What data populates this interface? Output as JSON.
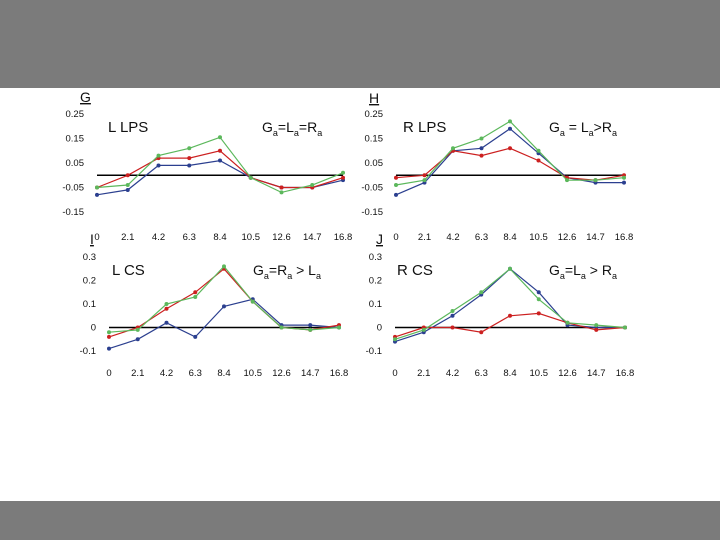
{
  "colors": {
    "frame_band": "#7b7b7b",
    "background": "#ffffff",
    "blue": "#2b3f8f",
    "red": "#cc2020",
    "green": "#5cb85c",
    "zero_line": "#000000"
  },
  "chart_data": [
    {
      "type": "line",
      "panel_letter": "G",
      "title": "L LPS",
      "annotation": [
        {
          "t": "G",
          "sub": false
        },
        {
          "t": "a",
          "sub": true
        },
        {
          "t": "=L",
          "sub": false
        },
        {
          "t": "a",
          "sub": true
        },
        {
          "t": "=R",
          "sub": false
        },
        {
          "t": "a",
          "sub": true
        }
      ],
      "x": [
        0,
        2.1,
        4.2,
        6.3,
        8.4,
        10.5,
        12.6,
        14.7,
        16.8
      ],
      "x_tick_labels": [
        "0",
        "2.1",
        "4.2",
        "6.3",
        "8.4",
        "10.5",
        "12.6",
        "14.7",
        "16.8"
      ],
      "ylim": [
        -0.15,
        0.25
      ],
      "y_ticks": [
        0.25,
        0.15,
        0.05,
        -0.05,
        -0.15
      ],
      "y_tick_labels": [
        "0.25",
        "0.15",
        "0.05",
        "-0.05",
        "-0.15"
      ],
      "series": [
        {
          "name": "blue",
          "values": [
            -0.08,
            -0.06,
            0.04,
            0.04,
            0.06,
            -0.01,
            -0.05,
            -0.05,
            -0.02
          ]
        },
        {
          "name": "red",
          "values": [
            -0.05,
            0.0,
            0.07,
            0.07,
            0.1,
            -0.01,
            -0.05,
            -0.05,
            -0.01
          ]
        },
        {
          "name": "green",
          "values": [
            -0.05,
            -0.04,
            0.08,
            0.11,
            0.155,
            -0.01,
            -0.07,
            -0.04,
            0.01
          ]
        }
      ]
    },
    {
      "type": "line",
      "panel_letter": "H",
      "title": "R LPS",
      "annotation": [
        {
          "t": "G",
          "sub": false
        },
        {
          "t": "a",
          "sub": true
        },
        {
          "t": " = L",
          "sub": false
        },
        {
          "t": "a",
          "sub": true
        },
        {
          "t": ">R",
          "sub": false
        },
        {
          "t": "a",
          "sub": true
        }
      ],
      "x": [
        0,
        2.1,
        4.2,
        6.3,
        8.4,
        10.5,
        12.6,
        14.7,
        16.8
      ],
      "x_tick_labels": [
        "0",
        "2.1",
        "4.2",
        "6.3",
        "8.4",
        "10.5",
        "12.6",
        "14.7",
        "16.8"
      ],
      "ylim": [
        -0.15,
        0.25
      ],
      "y_ticks": [
        0.25,
        0.15,
        0.05,
        -0.05,
        -0.15
      ],
      "y_tick_labels": [
        "0.25",
        "0.15",
        "0.05",
        "-0.05",
        "-0.15"
      ],
      "series": [
        {
          "name": "blue",
          "values": [
            -0.08,
            -0.03,
            0.1,
            0.11,
            0.19,
            0.09,
            -0.01,
            -0.03,
            -0.03
          ]
        },
        {
          "name": "red",
          "values": [
            -0.01,
            0.0,
            0.1,
            0.08,
            0.11,
            0.06,
            -0.01,
            -0.02,
            0.0
          ]
        },
        {
          "name": "green",
          "values": [
            -0.04,
            -0.02,
            0.11,
            0.15,
            0.22,
            0.1,
            -0.02,
            -0.02,
            -0.01
          ]
        }
      ]
    },
    {
      "type": "line",
      "panel_letter": "I",
      "title": "L CS",
      "annotation": [
        {
          "t": "G",
          "sub": false
        },
        {
          "t": "a",
          "sub": true
        },
        {
          "t": "=R",
          "sub": false
        },
        {
          "t": "a",
          "sub": true
        },
        {
          "t": " > L",
          "sub": false
        },
        {
          "t": "a",
          "sub": true
        }
      ],
      "x": [
        0,
        2.1,
        4.2,
        6.3,
        8.4,
        10.5,
        12.6,
        14.7,
        16.8
      ],
      "x_tick_labels": [
        "0",
        "2.1",
        "4.2",
        "6.3",
        "8.4",
        "10.5",
        "12.6",
        "14.7",
        "16.8"
      ],
      "ylim": [
        -0.1,
        0.3
      ],
      "y_ticks": [
        0.3,
        0.2,
        0.1,
        0,
        -0.1
      ],
      "y_tick_labels": [
        "0.3",
        "0.2",
        "0.1",
        "0",
        "-0.1"
      ],
      "series": [
        {
          "name": "blue",
          "values": [
            -0.09,
            -0.05,
            0.02,
            -0.04,
            0.09,
            0.12,
            0.01,
            0.01,
            0.0
          ]
        },
        {
          "name": "red",
          "values": [
            -0.04,
            0.0,
            0.08,
            0.15,
            0.25,
            0.11,
            0.0,
            -0.01,
            0.01
          ]
        },
        {
          "name": "green",
          "values": [
            -0.02,
            -0.01,
            0.1,
            0.13,
            0.26,
            0.11,
            0.0,
            -0.01,
            0.0
          ]
        }
      ]
    },
    {
      "type": "line",
      "panel_letter": "J",
      "title": "R CS",
      "annotation": [
        {
          "t": "G",
          "sub": false
        },
        {
          "t": "a",
          "sub": true
        },
        {
          "t": "=L",
          "sub": false
        },
        {
          "t": "a",
          "sub": true
        },
        {
          "t": " > R",
          "sub": false
        },
        {
          "t": "a",
          "sub": true
        }
      ],
      "x": [
        0,
        2.1,
        4.2,
        6.3,
        8.4,
        10.5,
        12.6,
        14.7,
        16.8
      ],
      "x_tick_labels": [
        "0",
        "2.1",
        "4.2",
        "6.3",
        "8.4",
        "10.5",
        "12.6",
        "14.7",
        "16.8"
      ],
      "ylim": [
        -0.1,
        0.3
      ],
      "y_ticks": [
        0.3,
        0.2,
        0.1,
        0,
        -0.1
      ],
      "y_tick_labels": [
        "0.3",
        "0.2",
        "0.1",
        "0",
        "-0.1"
      ],
      "series": [
        {
          "name": "blue",
          "values": [
            -0.06,
            -0.02,
            0.05,
            0.14,
            0.25,
            0.15,
            0.01,
            0.0,
            0.0
          ]
        },
        {
          "name": "red",
          "values": [
            -0.04,
            0.0,
            0.0,
            -0.02,
            0.05,
            0.06,
            0.02,
            -0.01,
            0.0
          ]
        },
        {
          "name": "green",
          "values": [
            -0.05,
            -0.01,
            0.07,
            0.15,
            0.25,
            0.12,
            0.02,
            0.01,
            0.0
          ]
        }
      ]
    }
  ]
}
